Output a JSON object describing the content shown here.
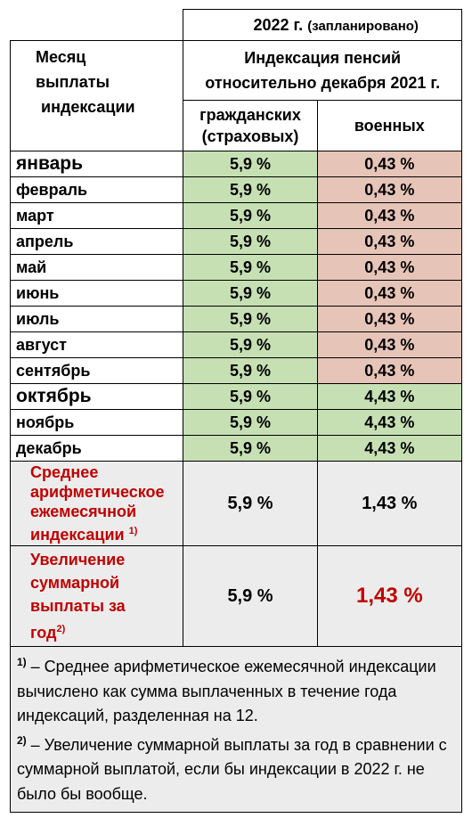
{
  "header": {
    "year": "2022 г.",
    "planned": "(запланировано)",
    "month_col_lines": [
      "Месяц",
      "выплаты",
      "индексации"
    ],
    "index_lines": [
      "Индексация пенсий",
      "относительно декабря 2021 г."
    ],
    "civil_lines": [
      "гражданских",
      "(страховых)"
    ],
    "military": "военных"
  },
  "months": [
    {
      "name": "январь",
      "civil": "5,9 %",
      "military": "0,43 %"
    },
    {
      "name": "февраль",
      "civil": "5,9 %",
      "military": "0,43 %"
    },
    {
      "name": "март",
      "civil": "5,9 %",
      "military": "0,43 %"
    },
    {
      "name": "апрель",
      "civil": "5,9 %",
      "military": "0,43 %"
    },
    {
      "name": "май",
      "civil": "5,9 %",
      "military": "0,43 %"
    },
    {
      "name": "июнь",
      "civil": "5,9 %",
      "military": "0,43 %"
    },
    {
      "name": "июль",
      "civil": "5,9 %",
      "military": "0,43 %"
    },
    {
      "name": "август",
      "civil": "5,9 %",
      "military": "0,43 %"
    },
    {
      "name": "сентябрь",
      "civil": "5,9 %",
      "military": "0,43 %"
    },
    {
      "name": "октябрь",
      "civil": "5,9 %",
      "military": "4,43 %"
    },
    {
      "name": "ноябрь",
      "civil": "5,9 %",
      "military": "4,43 %"
    },
    {
      "name": "декабрь",
      "civil": "5,9 %",
      "military": "4,43 %"
    }
  ],
  "average": {
    "label_lines": [
      "Среднее",
      "арифметическое",
      "ежемесячной",
      "индексации"
    ],
    "footnote": "1)",
    "civil": "5,9 %",
    "military": "1,43 %"
  },
  "increase": {
    "label_lines": [
      "Увеличение",
      "суммарной",
      "выплаты за",
      "год"
    ],
    "footnote": "2)",
    "civil": "5,9 %",
    "military": "1,43 %"
  },
  "notes": {
    "note1_mark": "1)",
    "note1_text": " – Среднее арифметическое ежемесячной индексации вычислено как сумма выплаченных в течение года индексаций, разделенная на 12.",
    "note2_mark": "2)",
    "note2_text": " – Увеличение суммарной выплаты за год в сравнении с суммарной выплатой, если бы индексации в 2022 г. не было бы вообще."
  }
}
